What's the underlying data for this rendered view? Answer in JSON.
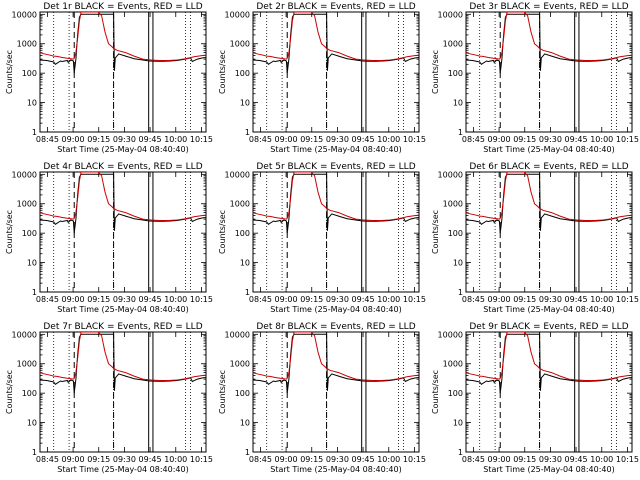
{
  "chart_data": [
    {
      "type": "line",
      "title": "Det 1r BLACK = Events, RED = LLD"
    },
    {
      "type": "line",
      "title": "Det 2r BLACK = Events, RED = LLD"
    },
    {
      "type": "line",
      "title": "Det 3r BLACK = Events, RED = LLD"
    },
    {
      "type": "line",
      "title": "Det 4r BLACK = Events, RED = LLD"
    },
    {
      "type": "line",
      "title": "Det 5r BLACK = Events, RED = LLD"
    },
    {
      "type": "line",
      "title": "Det 6r BLACK = Events, RED = LLD"
    },
    {
      "type": "line",
      "title": "Det 7r BLACK = Events, RED = LLD"
    },
    {
      "type": "line",
      "title": "Det 8r BLACK = Events, RED = LLD"
    },
    {
      "type": "line",
      "title": "Det 9r BLACK = Events, RED = LLD"
    }
  ],
  "shared": {
    "xlabel": "Start Time (25-May-04 08:40:40)",
    "ylabel": "Counts/sec",
    "x_ticks": [
      "08:45",
      "09:00",
      "09:15",
      "09:30",
      "09:45",
      "10:00",
      "10:15"
    ],
    "x_tick_minutes": [
      4.33,
      19.33,
      34.33,
      49.33,
      64.33,
      79.33,
      94.33
    ],
    "xlim_minutes": [
      0,
      97
    ],
    "y_scale": "log",
    "ylim": [
      1,
      12000
    ],
    "y_ticks": [
      "1",
      "10",
      "100",
      "1000",
      "10000"
    ],
    "y_tick_values": [
      1,
      10,
      100,
      1000,
      10000
    ],
    "dotted_lines_minutes": [
      8,
      17,
      43,
      85,
      88
    ],
    "dashed_lines_minutes": [
      20,
      43
    ],
    "solid_lines_minutes": [
      63.5,
      66
    ],
    "series": [
      {
        "name": "Events",
        "color": "#000000",
        "x": [
          0,
          4,
          8,
          9,
          12,
          13,
          16,
          16.5,
          18,
          19.5,
          20,
          21,
          22,
          23,
          24,
          25,
          40,
          43,
          43.5,
          44,
          46,
          50,
          55,
          60,
          64,
          68,
          72,
          76,
          80,
          85,
          87,
          88,
          89,
          92,
          95,
          97
        ],
        "y": [
          280,
          270,
          240,
          200,
          260,
          250,
          270,
          230,
          280,
          260,
          100,
          300,
          2000,
          8000,
          10000,
          10000,
          10000,
          10000,
          120,
          330,
          450,
          380,
          310,
          280,
          260,
          255,
          255,
          260,
          270,
          300,
          320,
          330,
          250,
          300,
          330,
          340
        ]
      },
      {
        "name": "LLD",
        "color": "#cc0000",
        "x": [
          0,
          2,
          5,
          8,
          10,
          13,
          16,
          18,
          19.5,
          20,
          21,
          22,
          23,
          24,
          25,
          30,
          34,
          36,
          38,
          40,
          42,
          43,
          45,
          50,
          55,
          60,
          65,
          70,
          75,
          80,
          85,
          90,
          95,
          97
        ],
        "y": [
          500,
          460,
          420,
          380,
          370,
          340,
          320,
          310,
          300,
          320,
          500,
          1500,
          6000,
          13000,
          15000,
          15000,
          15000,
          9000,
          2500,
          1000,
          800,
          700,
          600,
          500,
          380,
          300,
          280,
          270,
          270,
          280,
          310,
          360,
          400,
          410
        ]
      }
    ]
  }
}
